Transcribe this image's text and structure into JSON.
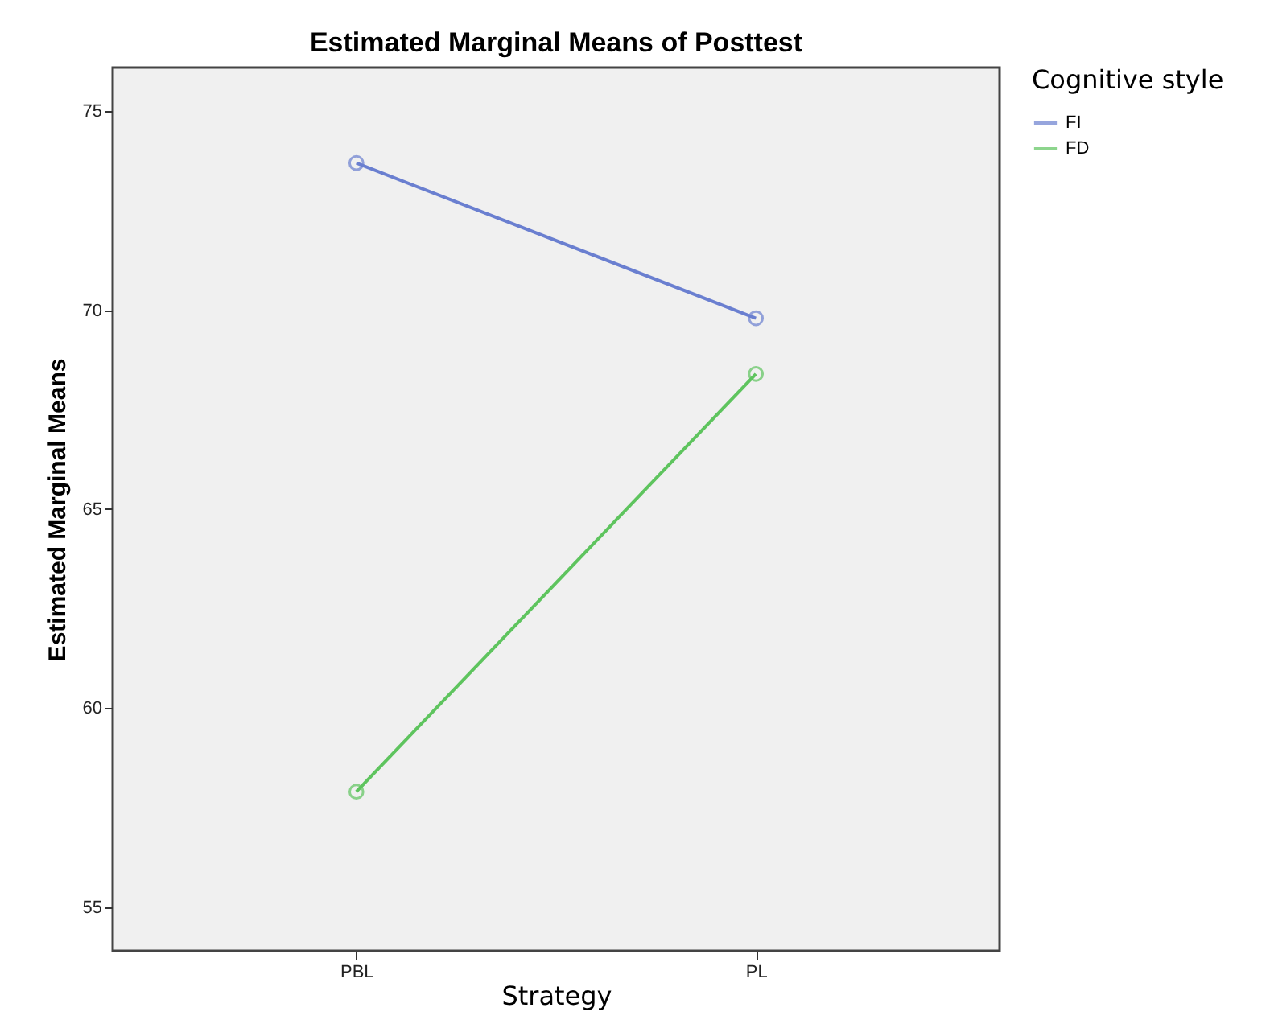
{
  "chart_data": {
    "type": "line",
    "title": "Estimated Marginal Means of Posttest",
    "xlabel": "Strategy",
    "ylabel": "Estimated Marginal Means",
    "legend_title": "Cognitive style",
    "categories": [
      "PBL",
      "PL"
    ],
    "series": [
      {
        "name": "FI",
        "color": "#6a7fd0",
        "values": [
          73.7,
          69.8
        ]
      },
      {
        "name": "FD",
        "color": "#5ec45e",
        "values": [
          57.9,
          68.4
        ]
      }
    ],
    "ylim": [
      53.9,
      76.1
    ],
    "yticks": [
      55,
      60,
      65,
      70,
      75
    ],
    "grid": false,
    "legend": "top right",
    "marker": "circle",
    "line_style": "solid"
  }
}
